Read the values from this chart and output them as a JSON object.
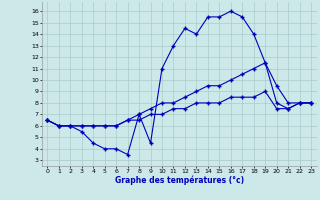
{
  "xlabel": "Graphe des températures (°c)",
  "bg_color": "#cce8e8",
  "line_color": "#0000bb",
  "grid_color": "#aacccc",
  "xlim": [
    -0.5,
    23.5
  ],
  "ylim": [
    2.5,
    16.8
  ],
  "yticks": [
    3,
    4,
    5,
    6,
    7,
    8,
    9,
    10,
    11,
    12,
    13,
    14,
    15,
    16
  ],
  "xticks": [
    0,
    1,
    2,
    3,
    4,
    5,
    6,
    7,
    8,
    9,
    10,
    11,
    12,
    13,
    14,
    15,
    16,
    17,
    18,
    19,
    20,
    21,
    22,
    23
  ],
  "curve1_x": [
    0,
    1,
    2,
    3,
    4,
    5,
    6,
    7,
    8,
    9,
    10,
    11,
    12,
    13,
    14,
    15,
    16,
    17,
    18,
    19,
    20,
    21,
    22,
    23
  ],
  "curve1_y": [
    6.5,
    6.0,
    6.0,
    5.5,
    4.5,
    4.0,
    4.0,
    3.5,
    7.0,
    4.5,
    11.0,
    13.0,
    14.5,
    14.0,
    15.5,
    15.5,
    16.0,
    15.5,
    14.0,
    11.5,
    9.5,
    8.0,
    8.0,
    8.0
  ],
  "curve2_x": [
    0,
    1,
    2,
    3,
    4,
    5,
    6,
    7,
    8,
    9,
    10,
    11,
    12,
    13,
    14,
    15,
    16,
    17,
    18,
    19,
    20,
    21,
    22,
    23
  ],
  "curve2_y": [
    6.5,
    6.0,
    6.0,
    6.0,
    6.0,
    6.0,
    6.0,
    6.5,
    7.0,
    7.5,
    8.0,
    8.0,
    8.5,
    9.0,
    9.5,
    9.5,
    10.0,
    10.5,
    11.0,
    11.5,
    8.0,
    7.5,
    8.0,
    8.0
  ],
  "curve3_x": [
    0,
    1,
    2,
    3,
    4,
    5,
    6,
    7,
    8,
    9,
    10,
    11,
    12,
    13,
    14,
    15,
    16,
    17,
    18,
    19,
    20,
    21,
    22,
    23
  ],
  "curve3_y": [
    6.5,
    6.0,
    6.0,
    6.0,
    6.0,
    6.0,
    6.0,
    6.5,
    6.5,
    7.0,
    7.0,
    7.5,
    7.5,
    8.0,
    8.0,
    8.0,
    8.5,
    8.5,
    8.5,
    9.0,
    7.5,
    7.5,
    8.0,
    8.0
  ]
}
